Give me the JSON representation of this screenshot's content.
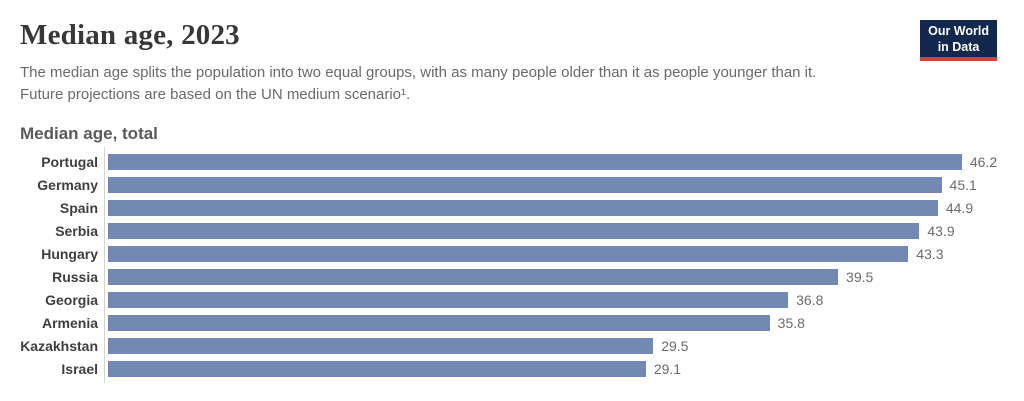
{
  "header": {
    "title": "Median age, 2023",
    "subtitle": "The median age splits the population into two equal groups, with as many people older than it as people younger than it. Future projections are based on the UN medium scenario¹.",
    "logo": {
      "line1": "Our World",
      "line2": "in Data",
      "bg_color": "#12294d",
      "accent_color": "#d73e3e"
    }
  },
  "chart": {
    "section_title": "Median age, total"
  },
  "chart_data": {
    "type": "bar",
    "orientation": "horizontal",
    "title": "Median age, total",
    "categories": [
      "Portugal",
      "Germany",
      "Spain",
      "Serbia",
      "Hungary",
      "Russia",
      "Georgia",
      "Armenia",
      "Kazakhstan",
      "Israel"
    ],
    "values": [
      46.2,
      45.1,
      44.9,
      43.9,
      43.3,
      39.5,
      36.8,
      35.8,
      29.5,
      29.1
    ],
    "xlim": [
      0,
      48.5
    ],
    "grid": false,
    "legend": "none",
    "value_labels": true,
    "bar_color": "#7189b3",
    "value_label_color": "#6b6b6b",
    "axis_line_color": "#d4d4d4"
  }
}
